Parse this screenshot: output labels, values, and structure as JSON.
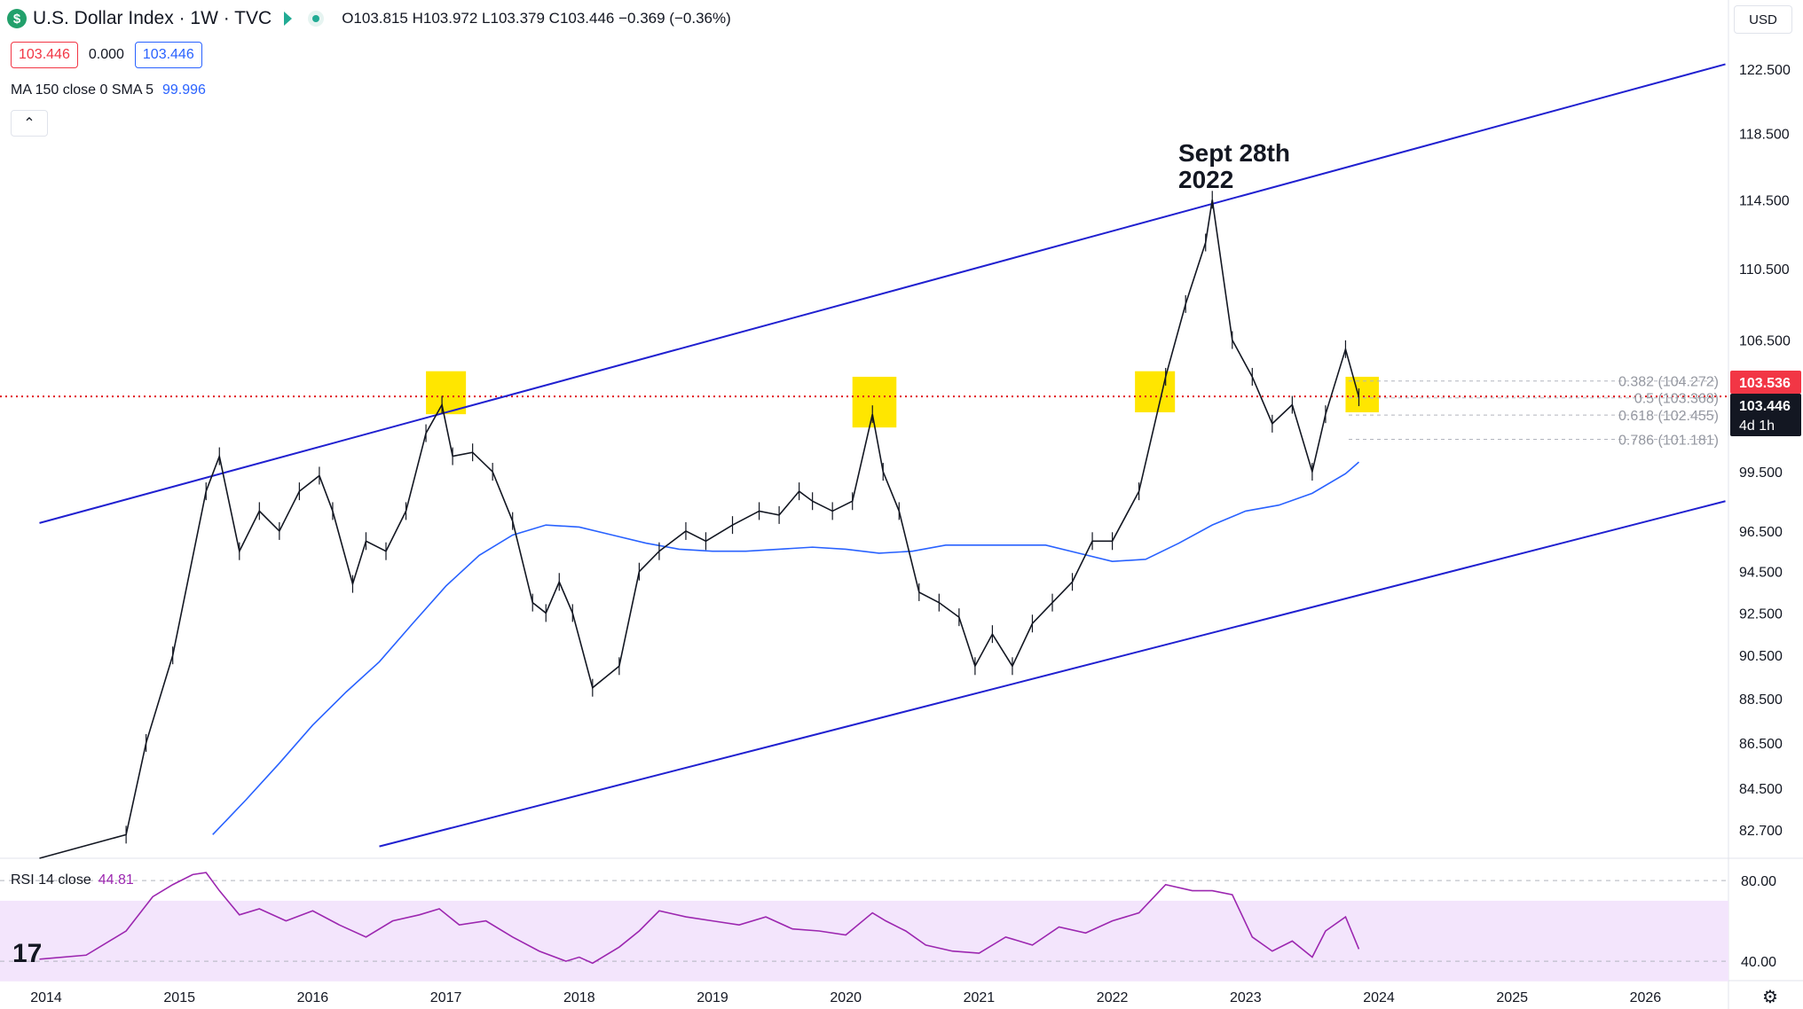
{
  "header": {
    "symbol_title": "U.S. Dollar Index · 1W · TVC",
    "logo_letter": "$",
    "ohlc": "O103.815 H103.972 L103.379 C103.446 −0.369 (−0.36%)"
  },
  "trade": {
    "sell_price": "103.446",
    "spread": "0.000",
    "buy_price": "103.446"
  },
  "indicator": {
    "label": "MA 150 close 0 SMA 5",
    "value": "99.996"
  },
  "collapse_label": "⌃",
  "currency_label": "USD",
  "annotation": {
    "line1": "Sept 28th",
    "line2": "2022"
  },
  "price_badges": {
    "upper": "103.536",
    "current": "103.446",
    "countdown": "4d 1h"
  },
  "fib_labels": [
    "0.382 (104.272)",
    "0.5 (103.368)",
    "0.618 (102.455)",
    "0.786 (101.181)"
  ],
  "rsi": {
    "label": "RSI 14 close",
    "value": "44.81"
  },
  "tv_logo": "17",
  "chart_data": [
    {
      "type": "line",
      "title": "U.S. Dollar Index · 1W · TVC",
      "xlabel": "",
      "ylabel": "",
      "x_ticks": [
        "2014",
        "2015",
        "2016",
        "2017",
        "2018",
        "2019",
        "2020",
        "2021",
        "2022",
        "2023",
        "2024",
        "2025",
        "2026"
      ],
      "y_ticks": [
        "122.500",
        "118.500",
        "114.500",
        "110.500",
        "106.500",
        "103.446",
        "99.500",
        "96.500",
        "94.500",
        "92.500",
        "90.500",
        "88.500",
        "86.500",
        "84.500",
        "82.700"
      ],
      "ylim": [
        81.5,
        123.5
      ],
      "scale": "log",
      "series": [
        {
          "name": "U.S. Dollar Index",
          "color": "#131722",
          "x": [
            2013.95,
            2014.35,
            2014.6,
            2014.75,
            2014.95,
            2015.2,
            2015.3,
            2015.45,
            2015.6,
            2015.75,
            2015.9,
            2016.05,
            2016.15,
            2016.3,
            2016.4,
            2016.55,
            2016.7,
            2016.85,
            2016.97,
            2017.05,
            2017.2,
            2017.35,
            2017.5,
            2017.65,
            2017.75,
            2017.85,
            2017.95,
            2018.1,
            2018.3,
            2018.45,
            2018.6,
            2018.8,
            2018.95,
            2019.15,
            2019.35,
            2019.5,
            2019.65,
            2019.75,
            2019.9,
            2020.05,
            2020.2,
            2020.28,
            2020.4,
            2020.55,
            2020.7,
            2020.85,
            2020.97,
            2021.1,
            2021.25,
            2021.4,
            2021.55,
            2021.7,
            2021.85,
            2022.0,
            2022.2,
            2022.4,
            2022.55,
            2022.7,
            2022.75,
            2022.9,
            2023.05,
            2023.2,
            2023.35,
            2023.5,
            2023.6,
            2023.75,
            2023.85
          ],
          "y": [
            80.5,
            80.2,
            82.5,
            86.5,
            90.5,
            98.5,
            100.3,
            95.5,
            97.5,
            96.5,
            98.5,
            99.3,
            97.5,
            93.9,
            96.0,
            95.5,
            97.5,
            101.5,
            103.0,
            100.3,
            100.5,
            99.5,
            97.0,
            93.0,
            92.5,
            94.0,
            92.5,
            89.0,
            90.0,
            94.5,
            95.5,
            96.5,
            96.0,
            96.8,
            97.5,
            97.3,
            98.5,
            98.0,
            97.5,
            98.0,
            102.5,
            99.5,
            97.5,
            93.5,
            93.0,
            92.3,
            90.0,
            91.5,
            90.0,
            92.0,
            93.0,
            94.0,
            96.0,
            96.0,
            98.5,
            104.5,
            108.5,
            112.0,
            114.5,
            106.5,
            104.5,
            102.0,
            103.0,
            99.5,
            102.5,
            106.0,
            103.4
          ]
        },
        {
          "name": "MA 150 close 0 SMA 5",
          "color": "#2962ff",
          "x": [
            2015.0,
            2015.25,
            2015.5,
            2015.75,
            2016.0,
            2016.25,
            2016.5,
            2016.75,
            2017.0,
            2017.25,
            2017.5,
            2017.75,
            2018.0,
            2018.25,
            2018.5,
            2018.75,
            2019.0,
            2019.25,
            2019.5,
            2019.75,
            2020.0,
            2020.25,
            2020.5,
            2020.75,
            2021.0,
            2021.25,
            2021.5,
            2021.75,
            2022.0,
            2022.25,
            2022.5,
            2022.75,
            2023.0,
            2023.25,
            2023.5,
            2023.75,
            2023.85
          ],
          "y": [
            81.5,
            82.5,
            84.0,
            85.6,
            87.3,
            88.8,
            90.2,
            92.0,
            93.8,
            95.3,
            96.3,
            96.8,
            96.7,
            96.3,
            95.9,
            95.6,
            95.5,
            95.5,
            95.6,
            95.7,
            95.6,
            95.4,
            95.5,
            95.8,
            95.8,
            95.8,
            95.8,
            95.4,
            95.0,
            95.1,
            95.9,
            96.8,
            97.5,
            97.8,
            98.4,
            99.4,
            100.0
          ]
        }
      ],
      "trendlines": [
        {
          "name": "upper channel",
          "color": "#2020d0",
          "x": [
            2013.95,
            2026.6
          ],
          "y": [
            96.9,
            122.8
          ]
        },
        {
          "name": "lower channel",
          "color": "#2020d0",
          "x": [
            2016.5,
            2026.6
          ],
          "y": [
            82.0,
            98.0
          ]
        }
      ],
      "horizontal_level": {
        "value": 103.446,
        "color": "#e0101a",
        "style": "dotted"
      },
      "highlight_zones": [
        {
          "x_start": 2016.85,
          "x_end": 2017.15,
          "y_low": 102.5,
          "y_high": 104.8,
          "color": "#ffe600"
        },
        {
          "x_start": 2020.05,
          "x_end": 2020.38,
          "y_low": 101.8,
          "y_high": 104.5,
          "color": "#ffe600"
        },
        {
          "x_start": 2022.17,
          "x_end": 2022.47,
          "y_low": 102.6,
          "y_high": 104.8,
          "color": "#ffe600"
        },
        {
          "x_start": 2023.75,
          "x_end": 2024.0,
          "y_low": 102.6,
          "y_high": 104.5,
          "color": "#ffe600"
        }
      ],
      "fib_levels": [
        {
          "ratio": "0.382",
          "value": 104.272
        },
        {
          "ratio": "0.5",
          "value": 103.368
        },
        {
          "ratio": "0.618",
          "value": 102.455
        },
        {
          "ratio": "0.786",
          "value": 101.181
        }
      ]
    },
    {
      "type": "line",
      "title": "RSI 14 close",
      "y_ticks": [
        "80.00",
        "40.00"
      ],
      "ylim": [
        33,
        88
      ],
      "band": [
        30,
        70
      ],
      "series": [
        {
          "name": "RSI 14 close",
          "color": "#9c27b0",
          "x": [
            2013.95,
            2014.3,
            2014.6,
            2014.8,
            2014.95,
            2015.1,
            2015.2,
            2015.3,
            2015.45,
            2015.6,
            2015.8,
            2016.0,
            2016.2,
            2016.4,
            2016.6,
            2016.8,
            2016.95,
            2017.1,
            2017.3,
            2017.5,
            2017.7,
            2017.9,
            2018.0,
            2018.1,
            2018.3,
            2018.45,
            2018.6,
            2018.8,
            2019.0,
            2019.2,
            2019.4,
            2019.6,
            2019.8,
            2020.0,
            2020.2,
            2020.3,
            2020.45,
            2020.6,
            2020.8,
            2021.0,
            2021.2,
            2021.4,
            2021.6,
            2021.8,
            2022.0,
            2022.2,
            2022.4,
            2022.6,
            2022.75,
            2022.9,
            2023.05,
            2023.2,
            2023.35,
            2023.5,
            2023.6,
            2023.75,
            2023.85
          ],
          "y": [
            41,
            43,
            55,
            72,
            78,
            83,
            84,
            75,
            63,
            66,
            60,
            65,
            58,
            52,
            60,
            63,
            66,
            58,
            60,
            52,
            45,
            40,
            42,
            39,
            47,
            55,
            65,
            62,
            60,
            58,
            62,
            56,
            55,
            53,
            64,
            60,
            55,
            48,
            45,
            44,
            52,
            48,
            57,
            54,
            60,
            64,
            78,
            75,
            75,
            73,
            52,
            45,
            50,
            42,
            55,
            62,
            46
          ]
        }
      ]
    }
  ]
}
